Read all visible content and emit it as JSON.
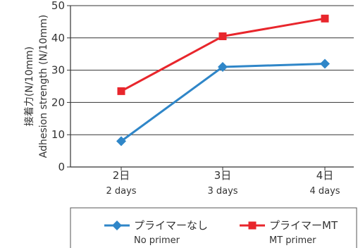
{
  "chart_data": {
    "type": "line",
    "categories": [
      {
        "label": "2日",
        "sublabel": "2 days"
      },
      {
        "label": "3日",
        "sublabel": "3 days"
      },
      {
        "label": "4日",
        "sublabel": "4 days"
      }
    ],
    "series": [
      {
        "name": "プライマーなし",
        "subname": "No primer",
        "color": "#2f86c8",
        "marker": "diamond",
        "values": [
          8,
          31,
          32
        ]
      },
      {
        "name": "プライマーMT",
        "subname": "MT primer",
        "color": "#e8262c",
        "marker": "square",
        "values": [
          23.5,
          40.5,
          46
        ]
      }
    ],
    "ylabel": [
      "接着力(N/10mm)",
      "Adhesion strength (N/10mm)"
    ],
    "ylim": [
      0,
      50
    ],
    "yticks": [
      0,
      10,
      20,
      30,
      40,
      50
    ],
    "grid": true,
    "legend_position": "bottom"
  }
}
